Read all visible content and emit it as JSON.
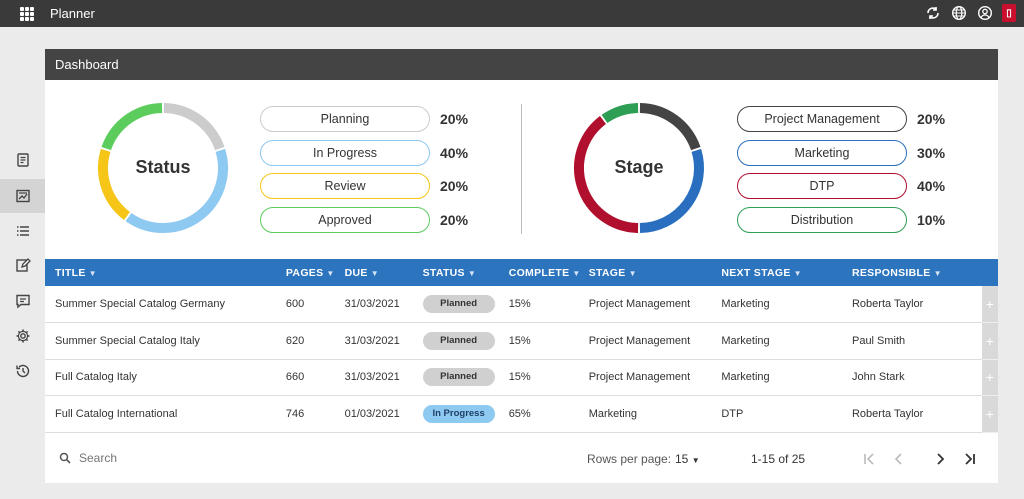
{
  "app": {
    "title": "Planner"
  },
  "panel": {
    "title": "Dashboard"
  },
  "status_chart": {
    "label": "Status",
    "segments": [
      {
        "name": "Planning",
        "value": 20,
        "pct": "20%",
        "color": "#cccccc"
      },
      {
        "name": "In Progress",
        "value": 40,
        "pct": "40%",
        "color": "#8ec9f2"
      },
      {
        "name": "Review",
        "value": 20,
        "pct": "20%",
        "color": "#f5c518"
      },
      {
        "name": "Approved",
        "value": 20,
        "pct": "20%",
        "color": "#5ccc5c"
      }
    ]
  },
  "stage_chart": {
    "label": "Stage",
    "segments": [
      {
        "name": "Project Management",
        "value": 20,
        "pct": "20%",
        "color": "#444444"
      },
      {
        "name": "Marketing",
        "value": 30,
        "pct": "30%",
        "color": "#2a6fbf"
      },
      {
        "name": "DTP",
        "value": 40,
        "pct": "40%",
        "color": "#b0102e"
      },
      {
        "name": "Distribution",
        "value": 10,
        "pct": "10%",
        "color": "#2e9e55"
      }
    ]
  },
  "table": {
    "headers": [
      "TITLE",
      "PAGES",
      "DUE",
      "STATUS",
      "COMPLETE",
      "STAGE",
      "NEXT STAGE",
      "RESPONSIBLE"
    ],
    "rows": [
      {
        "title": "Summer Special Catalog Germany",
        "pages": "600",
        "due": "31/03/2021",
        "status": "Planned",
        "complete": "15%",
        "stage": "Project Management",
        "next_stage": "Marketing",
        "responsible": "Roberta Taylor"
      },
      {
        "title": "Summer Special Catalog Italy",
        "pages": "620",
        "due": "31/03/2021",
        "status": "Planned",
        "complete": "15%",
        "stage": "Project Management",
        "next_stage": "Marketing",
        "responsible": "Paul Smith"
      },
      {
        "title": "Full Catalog Italy",
        "pages": "660",
        "due": "31/03/2021",
        "status": "Planned",
        "complete": "15%",
        "stage": "Project Management",
        "next_stage": "Marketing",
        "responsible": "John Stark"
      },
      {
        "title": "Full Catalog International",
        "pages": "746",
        "due": "01/03/2021",
        "status": "In Progress",
        "complete": "65%",
        "stage": "Marketing",
        "next_stage": "DTP",
        "responsible": "Roberta Taylor"
      }
    ],
    "row_action": "+"
  },
  "footer": {
    "search_placeholder": "Search",
    "rows_per_page_label": "Rows per page:",
    "rows_per_page_value": "15",
    "range": "1-15 of 25"
  },
  "colors": {
    "accent": "#2d74bf",
    "topbar": "#3a3a3a",
    "header": "#444444"
  }
}
